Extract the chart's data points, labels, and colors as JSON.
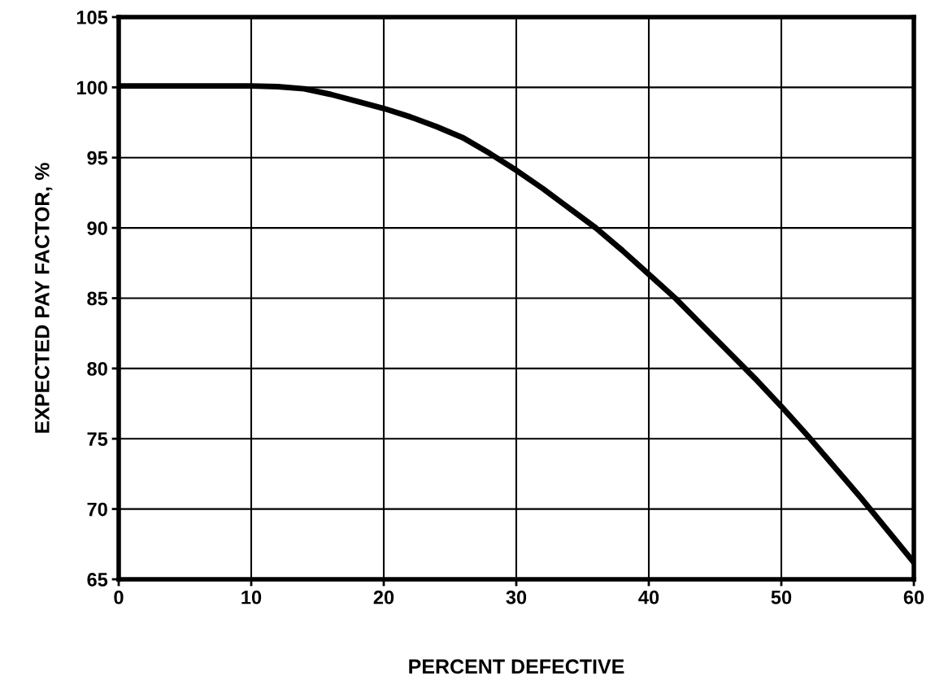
{
  "chart_data": {
    "type": "line",
    "xlabel": "PERCENT DEFECTIVE",
    "ylabel": "EXPECTED PAY FACTOR, %",
    "x": [
      0,
      5,
      10,
      12,
      14,
      16,
      18,
      20,
      22,
      24,
      26,
      28,
      30,
      32,
      34,
      36,
      38,
      40,
      42,
      44,
      46,
      48,
      50,
      52,
      54,
      56,
      58,
      60
    ],
    "series": [
      {
        "color": "#000000",
        "values": [
          100.1,
          100.1,
          100.1,
          100.05,
          99.9,
          99.5,
          99.0,
          98.5,
          97.9,
          97.2,
          96.4,
          95.3,
          94.1,
          92.8,
          91.4,
          90.0,
          88.4,
          86.7,
          85.0,
          83.1,
          81.2,
          79.3,
          77.3,
          75.2,
          73.0,
          70.8,
          68.5,
          66.2
        ]
      }
    ],
    "xlim": [
      0,
      60
    ],
    "ylim": [
      65,
      105
    ],
    "xticks": [
      0,
      10,
      20,
      30,
      40,
      50,
      60
    ],
    "yticks": [
      65,
      70,
      75,
      80,
      85,
      90,
      95,
      100,
      105
    ],
    "grid": true,
    "line_style": "solid",
    "marker": "none"
  }
}
